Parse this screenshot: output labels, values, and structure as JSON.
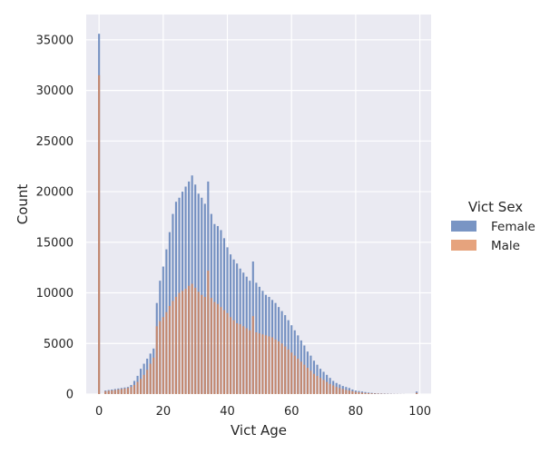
{
  "chart_data": {
    "type": "bar",
    "stacking": "overlay",
    "xlabel": "Vict Age",
    "ylabel": "Count",
    "xlim": [
      -4,
      103.5
    ],
    "ylim": [
      0,
      37500
    ],
    "xticks": [
      "0",
      "20",
      "40",
      "60",
      "80",
      "100"
    ],
    "yticks": [
      "0",
      "5000",
      "10000",
      "15000",
      "20000",
      "25000",
      "30000",
      "35000"
    ],
    "grid": true,
    "legend": {
      "title": "Vict Sex",
      "position": "right",
      "entries": [
        "Female",
        "Male"
      ]
    },
    "bin_width": 0.6,
    "series": [
      {
        "name": "Female",
        "color": "#4c72b0",
        "ages": [
          0,
          2,
          3,
          4,
          5,
          6,
          7,
          8,
          9,
          10,
          11,
          12,
          13,
          14,
          15,
          16,
          17,
          18,
          19,
          20,
          21,
          22,
          23,
          24,
          25,
          26,
          27,
          28,
          29,
          30,
          31,
          32,
          33,
          34,
          35,
          36,
          37,
          38,
          39,
          40,
          41,
          42,
          43,
          44,
          45,
          46,
          47,
          48,
          49,
          50,
          51,
          52,
          53,
          54,
          55,
          56,
          57,
          58,
          59,
          60,
          61,
          62,
          63,
          64,
          65,
          66,
          67,
          68,
          69,
          70,
          71,
          72,
          73,
          74,
          75,
          76,
          77,
          78,
          79,
          80,
          81,
          82,
          83,
          84,
          85,
          86,
          87,
          88,
          89,
          90,
          91,
          92,
          93,
          94,
          95,
          99
        ],
        "values": [
          35600,
          350,
          400,
          450,
          500,
          550,
          600,
          650,
          700,
          900,
          1300,
          1800,
          2500,
          3000,
          3500,
          4000,
          4500,
          9000,
          11200,
          12600,
          14300,
          16000,
          17800,
          19000,
          19400,
          20000,
          20500,
          21000,
          21600,
          20700,
          19800,
          19400,
          18800,
          21000,
          17800,
          16800,
          16600,
          16200,
          15400,
          14500,
          13800,
          13300,
          12900,
          12400,
          12000,
          11600,
          11200,
          13100,
          11000,
          10600,
          10200,
          9800,
          9600,
          9300,
          9000,
          8600,
          8200,
          7800,
          7300,
          6800,
          6300,
          5800,
          5300,
          4800,
          4200,
          3800,
          3300,
          2900,
          2500,
          2200,
          1900,
          1600,
          1300,
          1100,
          950,
          800,
          700,
          600,
          450,
          350,
          300,
          250,
          200,
          150,
          120,
          90,
          70,
          60,
          50,
          40,
          30,
          20,
          15,
          10,
          5,
          250
        ]
      },
      {
        "name": "Male",
        "color": "#dd8452",
        "ages": [
          0,
          2,
          3,
          4,
          5,
          6,
          7,
          8,
          9,
          10,
          11,
          12,
          13,
          14,
          15,
          16,
          17,
          18,
          19,
          20,
          21,
          22,
          23,
          24,
          25,
          26,
          27,
          28,
          29,
          30,
          31,
          32,
          33,
          34,
          35,
          36,
          37,
          38,
          39,
          40,
          41,
          42,
          43,
          44,
          45,
          46,
          47,
          48,
          49,
          50,
          51,
          52,
          53,
          54,
          55,
          56,
          57,
          58,
          59,
          60,
          61,
          62,
          63,
          64,
          65,
          66,
          67,
          68,
          69,
          70,
          71,
          72,
          73,
          74,
          75,
          76,
          77,
          78,
          79,
          80,
          81,
          82,
          83,
          84,
          85,
          86,
          87,
          88,
          89,
          90,
          91,
          92,
          93,
          94,
          95,
          99
        ],
        "values": [
          31500,
          280,
          320,
          360,
          400,
          450,
          500,
          550,
          600,
          700,
          900,
          1200,
          1500,
          1900,
          2400,
          3000,
          3600,
          6700,
          7200,
          7600,
          8100,
          8700,
          9200,
          9600,
          10000,
          10200,
          10400,
          10700,
          10900,
          10500,
          10100,
          9800,
          9600,
          12200,
          9500,
          9100,
          8900,
          8600,
          8300,
          8000,
          7600,
          7300,
          7000,
          6900,
          6700,
          6500,
          6300,
          7700,
          6100,
          6000,
          5900,
          5800,
          5700,
          5600,
          5400,
          5200,
          5000,
          4700,
          4400,
          4100,
          3800,
          3500,
          3200,
          2900,
          2600,
          2300,
          2000,
          1800,
          1600,
          1400,
          1200,
          1000,
          850,
          700,
          600,
          500,
          420,
          350,
          280,
          220,
          180,
          140,
          110,
          90,
          70,
          55,
          45,
          35,
          25,
          20,
          15,
          10,
          8,
          5,
          3,
          120
        ]
      }
    ]
  }
}
